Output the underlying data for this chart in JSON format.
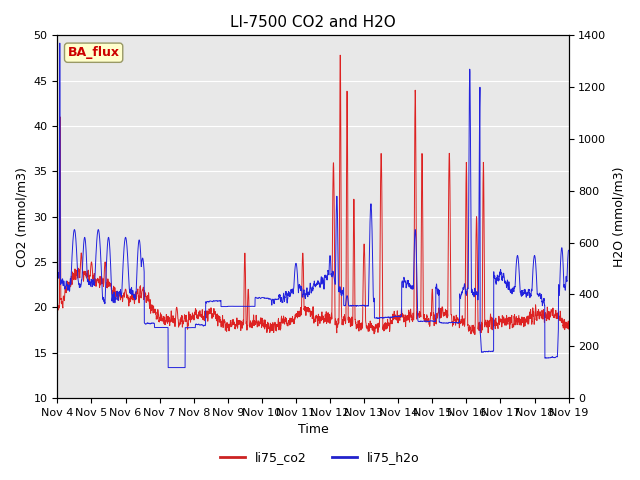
{
  "title": "LI-7500 CO2 and H2O",
  "xlabel": "Time",
  "ylabel_left": "CO2 (mmol/m3)",
  "ylabel_right": "H2O (mmol/m3)",
  "ylim_left": [
    10,
    50
  ],
  "ylim_right": [
    0,
    1400
  ],
  "xtick_labels": [
    "Nov 4",
    "Nov 5",
    "Nov 6",
    "Nov 7",
    "Nov 8",
    "Nov 9",
    "Nov 10",
    "Nov 11",
    "Nov 12",
    "Nov 13",
    "Nov 14",
    "Nov 15",
    "Nov 16",
    "Nov 17",
    "Nov 18",
    "Nov 19"
  ],
  "legend_labels": [
    "li75_co2",
    "li75_h2o"
  ],
  "legend_colors": [
    "#cc2222",
    "#2222cc"
  ],
  "box_label": "BA_flux",
  "box_bg": "#ffffcc",
  "box_text_color": "#cc0000",
  "box_edge_color": "#999966",
  "background_color": "#e8e8e8",
  "line_color_co2": "#dd2222",
  "line_color_h2o": "#2222dd",
  "title_fontsize": 11,
  "axis_fontsize": 9,
  "tick_fontsize": 8,
  "linewidth": 0.7
}
